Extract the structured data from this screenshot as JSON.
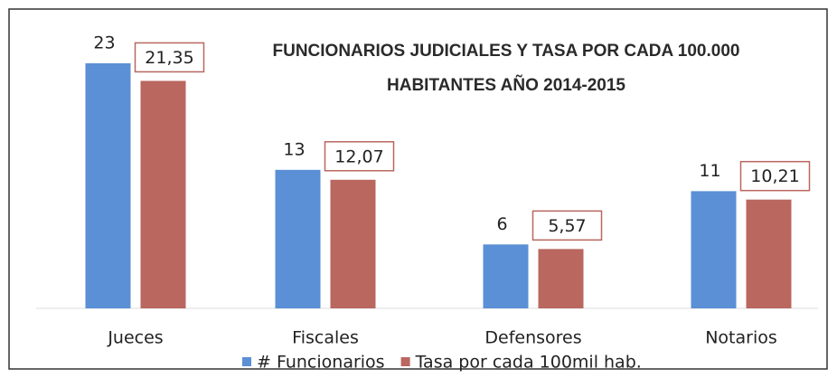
{
  "chart_data": {
    "type": "bar",
    "title": "FUNCIONARIOS JUDICIALES Y TASA POR CADA 100.000 HABITANTES AÑO 2014-2015",
    "categories": [
      "Jueces",
      "Fiscales",
      "Defensores",
      "Notarios"
    ],
    "series": [
      {
        "name": "# Funcionarios",
        "color": "#5b8fd6",
        "values": [
          23,
          13,
          6,
          11
        ]
      },
      {
        "name": "Tasa por cada 100mil hab.",
        "color": "#b9675f",
        "values": [
          21.35,
          12.07,
          5.57,
          10.21
        ],
        "value_labels": [
          "21,35",
          "12,07",
          "5,57",
          "10,21"
        ]
      }
    ],
    "legend": "bottom"
  }
}
